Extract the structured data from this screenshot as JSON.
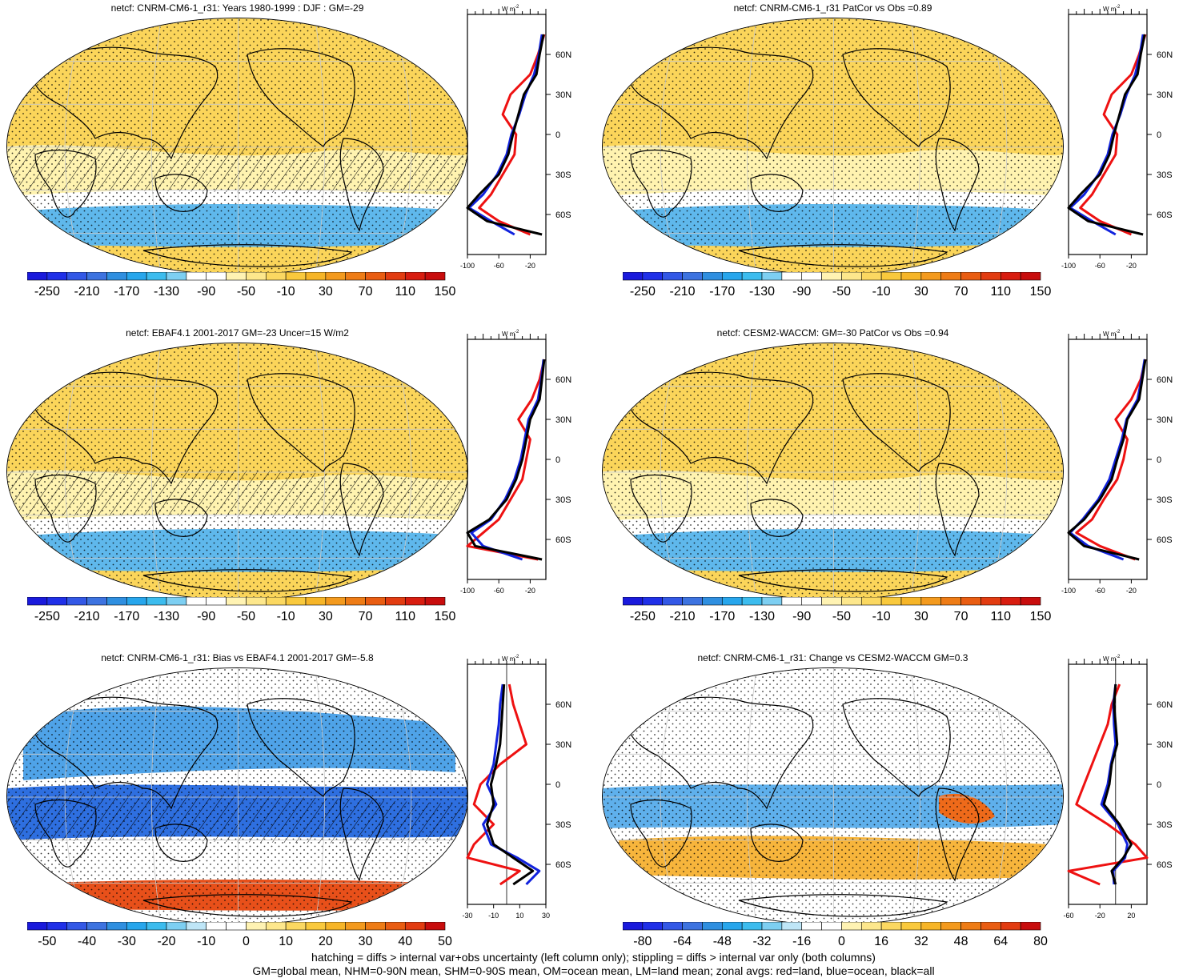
{
  "panels": [
    {
      "title": "netcf: CNRM-CM6-1_r31: Years 1980-1999 : DJF : GM=-29",
      "scheme": "full",
      "hatch": true,
      "profile": "base",
      "xticks": [
        "-100",
        "-60",
        "-20"
      ],
      "zero_line": false
    },
    {
      "title": "netcf: CNRM-CM6-1_r31 PatCor vs Obs =0.89",
      "scheme": "full",
      "hatch": false,
      "profile": "base",
      "xticks": [
        "-100",
        "-60",
        "-20"
      ],
      "zero_line": false
    },
    {
      "title": "netcf: EBAF4.1 2001-2017 GM=-23 Uncer=15 W/m2",
      "scheme": "full",
      "hatch": true,
      "profile": "obs",
      "xticks": [
        "-100",
        "-60",
        "-20"
      ],
      "zero_line": false
    },
    {
      "title": "netcf: CESM2-WACCM: GM=-30 PatCor vs Obs =0.94",
      "scheme": "full",
      "hatch": false,
      "profile": "cesm",
      "xticks": [
        "-100",
        "-60",
        "-20"
      ],
      "zero_line": false
    },
    {
      "title": "netcf: CNRM-CM6-1_r31: Bias vs EBAF4.1 2001-2017 GM=-5.8",
      "scheme": "bias",
      "hatch": true,
      "profile": "bias",
      "xticks": [
        "-30",
        "-10",
        "10",
        "30"
      ],
      "zero_line": true
    },
    {
      "title": "netcf: CNRM-CM6-1_r31: Change vs CESM2-WACCM GM=0.3",
      "scheme": "change",
      "hatch": false,
      "profile": "change",
      "xticks": [
        "-60",
        "-20",
        "20"
      ],
      "zero_line": true
    }
  ],
  "zonal_unit": "W m",
  "zonal_unit_exp": "-2",
  "lat_labels": [
    "60N",
    "30N",
    "0",
    "30S",
    "60S"
  ],
  "colorbars": {
    "full": {
      "labels": [
        "-250",
        "-210",
        "-170",
        "-130",
        "-90",
        "-50",
        "-10",
        "30",
        "70",
        "110",
        "150"
      ],
      "colors": [
        "#1a1adc",
        "#2030e8",
        "#3358e6",
        "#3d73e0",
        "#2f8fe0",
        "#27a6ec",
        "#3cbcee",
        "#7dcff2",
        "#ffffff",
        "#ffffff",
        "#fff3b3",
        "#fde78c",
        "#fbd861",
        "#f9c93d",
        "#f6b528",
        "#f39a1e",
        "#ee7c16",
        "#e95d12",
        "#e23c11",
        "#d81d10",
        "#c80d0d"
      ]
    },
    "bias": {
      "labels": [
        "-50",
        "-40",
        "-30",
        "-20",
        "-10",
        "0",
        "10",
        "20",
        "30",
        "40",
        "50"
      ],
      "colors": [
        "#1a1adc",
        "#2030e8",
        "#3358e6",
        "#3d73e0",
        "#2f8fe0",
        "#27a6ec",
        "#3cbcee",
        "#7dcff2",
        "#bfe6f7",
        "#ffffff",
        "#ffffff",
        "#fff3b3",
        "#fde78c",
        "#fbd861",
        "#f9c93d",
        "#f6b528",
        "#f39a1e",
        "#ee7c16",
        "#e95d12",
        "#e23c11",
        "#c80d0d"
      ]
    },
    "change": {
      "labels": [
        "-80",
        "-64",
        "-48",
        "-32",
        "-16",
        "0",
        "16",
        "32",
        "48",
        "64",
        "80"
      ],
      "colors": [
        "#1a1adc",
        "#2030e8",
        "#3358e6",
        "#3d73e0",
        "#2f8fe0",
        "#27a6ec",
        "#3cbcee",
        "#7dcff2",
        "#bfe6f7",
        "#ffffff",
        "#ffffff",
        "#fff3b3",
        "#fde78c",
        "#fbd861",
        "#f9c93d",
        "#f6b528",
        "#f39a1e",
        "#ee7c16",
        "#e95d12",
        "#e23c11",
        "#c80d0d"
      ]
    }
  },
  "footer": {
    "line1": "hatching = diffs > internal var+obs uncertainty (left column only); stippling = diffs > internal var only (both columns)",
    "line2": "GM=global mean, NHM=0-90N mean, SHM=0-90S mean, OM=ocean mean, LM=land mean; zonal avgs: red=land, blue=ocean, black=all"
  },
  "chart_data": [
    {
      "type": "heatmap",
      "title": "netcf: CNRM-CM6-1_r31: Years 1980-1999 : DJF : GM=-29",
      "colorbar_ticks": [
        -250,
        -210,
        -170,
        -130,
        -90,
        -50,
        -10,
        30,
        70,
        110,
        150
      ],
      "zonal_mean_all": {
        "lat": [
          75,
          60,
          45,
          30,
          15,
          0,
          -15,
          -30,
          -45,
          -55,
          -65,
          -75
        ],
        "value": [
          -3,
          -8,
          -12,
          -28,
          -35,
          -42,
          -48,
          -60,
          -85,
          -100,
          -75,
          -5
        ]
      }
    },
    {
      "type": "heatmap",
      "title": "netcf: CNRM-CM6-1_r31 PatCor vs Obs =0.89",
      "colorbar_ticks": [
        -250,
        -210,
        -170,
        -130,
        -90,
        -50,
        -10,
        30,
        70,
        110,
        150
      ],
      "zonal_mean_all": {
        "lat": [
          75,
          60,
          45,
          30,
          15,
          0,
          -15,
          -30,
          -45,
          -55,
          -65,
          -75
        ],
        "value": [
          -3,
          -8,
          -12,
          -28,
          -35,
          -42,
          -48,
          -60,
          -85,
          -100,
          -75,
          -5
        ]
      }
    },
    {
      "type": "heatmap",
      "title": "netcf: EBAF4.1 2001-2017 GM=-23 Uncer=15 W/m2",
      "colorbar_ticks": [
        -250,
        -210,
        -170,
        -130,
        -90,
        -50,
        -10,
        30,
        70,
        110,
        150
      ],
      "zonal_mean_all": {
        "lat": [
          75,
          60,
          45,
          30,
          15,
          0,
          -15,
          -30,
          -45,
          -55,
          -65,
          -75
        ],
        "value": [
          -2,
          -5,
          -8,
          -20,
          -25,
          -30,
          -38,
          -50,
          -72,
          -100,
          -90,
          -5
        ]
      }
    },
    {
      "type": "heatmap",
      "title": "netcf: CESM2-WACCM: GM=-30 PatCor vs Obs =0.94",
      "colorbar_ticks": [
        -250,
        -210,
        -170,
        -130,
        -90,
        -50,
        -10,
        30,
        70,
        110,
        150
      ],
      "zonal_mean_all": {
        "lat": [
          75,
          60,
          45,
          30,
          15,
          0,
          -15,
          -30,
          -45,
          -55,
          -65,
          -75
        ],
        "value": [
          -2,
          -6,
          -10,
          -25,
          -30,
          -38,
          -45,
          -60,
          -80,
          -100,
          -80,
          -10
        ]
      }
    },
    {
      "type": "heatmap",
      "title": "netcf: CNRM-CM6-1_r31: Bias vs EBAF4.1 2001-2017 GM=-5.8",
      "colorbar_ticks": [
        -50,
        -40,
        -30,
        -20,
        -10,
        0,
        10,
        20,
        30,
        40,
        50
      ],
      "zonal_mean_all": {
        "lat": [
          75,
          60,
          45,
          30,
          15,
          0,
          -15,
          -30,
          -45,
          -55,
          -65,
          -75
        ],
        "value": [
          -2,
          -3,
          -4,
          -5,
          -8,
          -12,
          -10,
          -15,
          -10,
          5,
          20,
          5
        ]
      }
    },
    {
      "type": "heatmap",
      "title": "netcf: CNRM-CM6-1_r31: Change vs CESM2-WACCM GM=0.3",
      "colorbar_ticks": [
        -80,
        -64,
        -48,
        -32,
        -16,
        0,
        16,
        32,
        48,
        64,
        80
      ],
      "zonal_mean_all": {
        "lat": [
          75,
          60,
          45,
          30,
          15,
          0,
          -15,
          -30,
          -45,
          -55,
          -65,
          -75
        ],
        "value": [
          0,
          -2,
          0,
          2,
          -5,
          -8,
          -15,
          5,
          20,
          10,
          -5,
          0
        ]
      }
    }
  ]
}
